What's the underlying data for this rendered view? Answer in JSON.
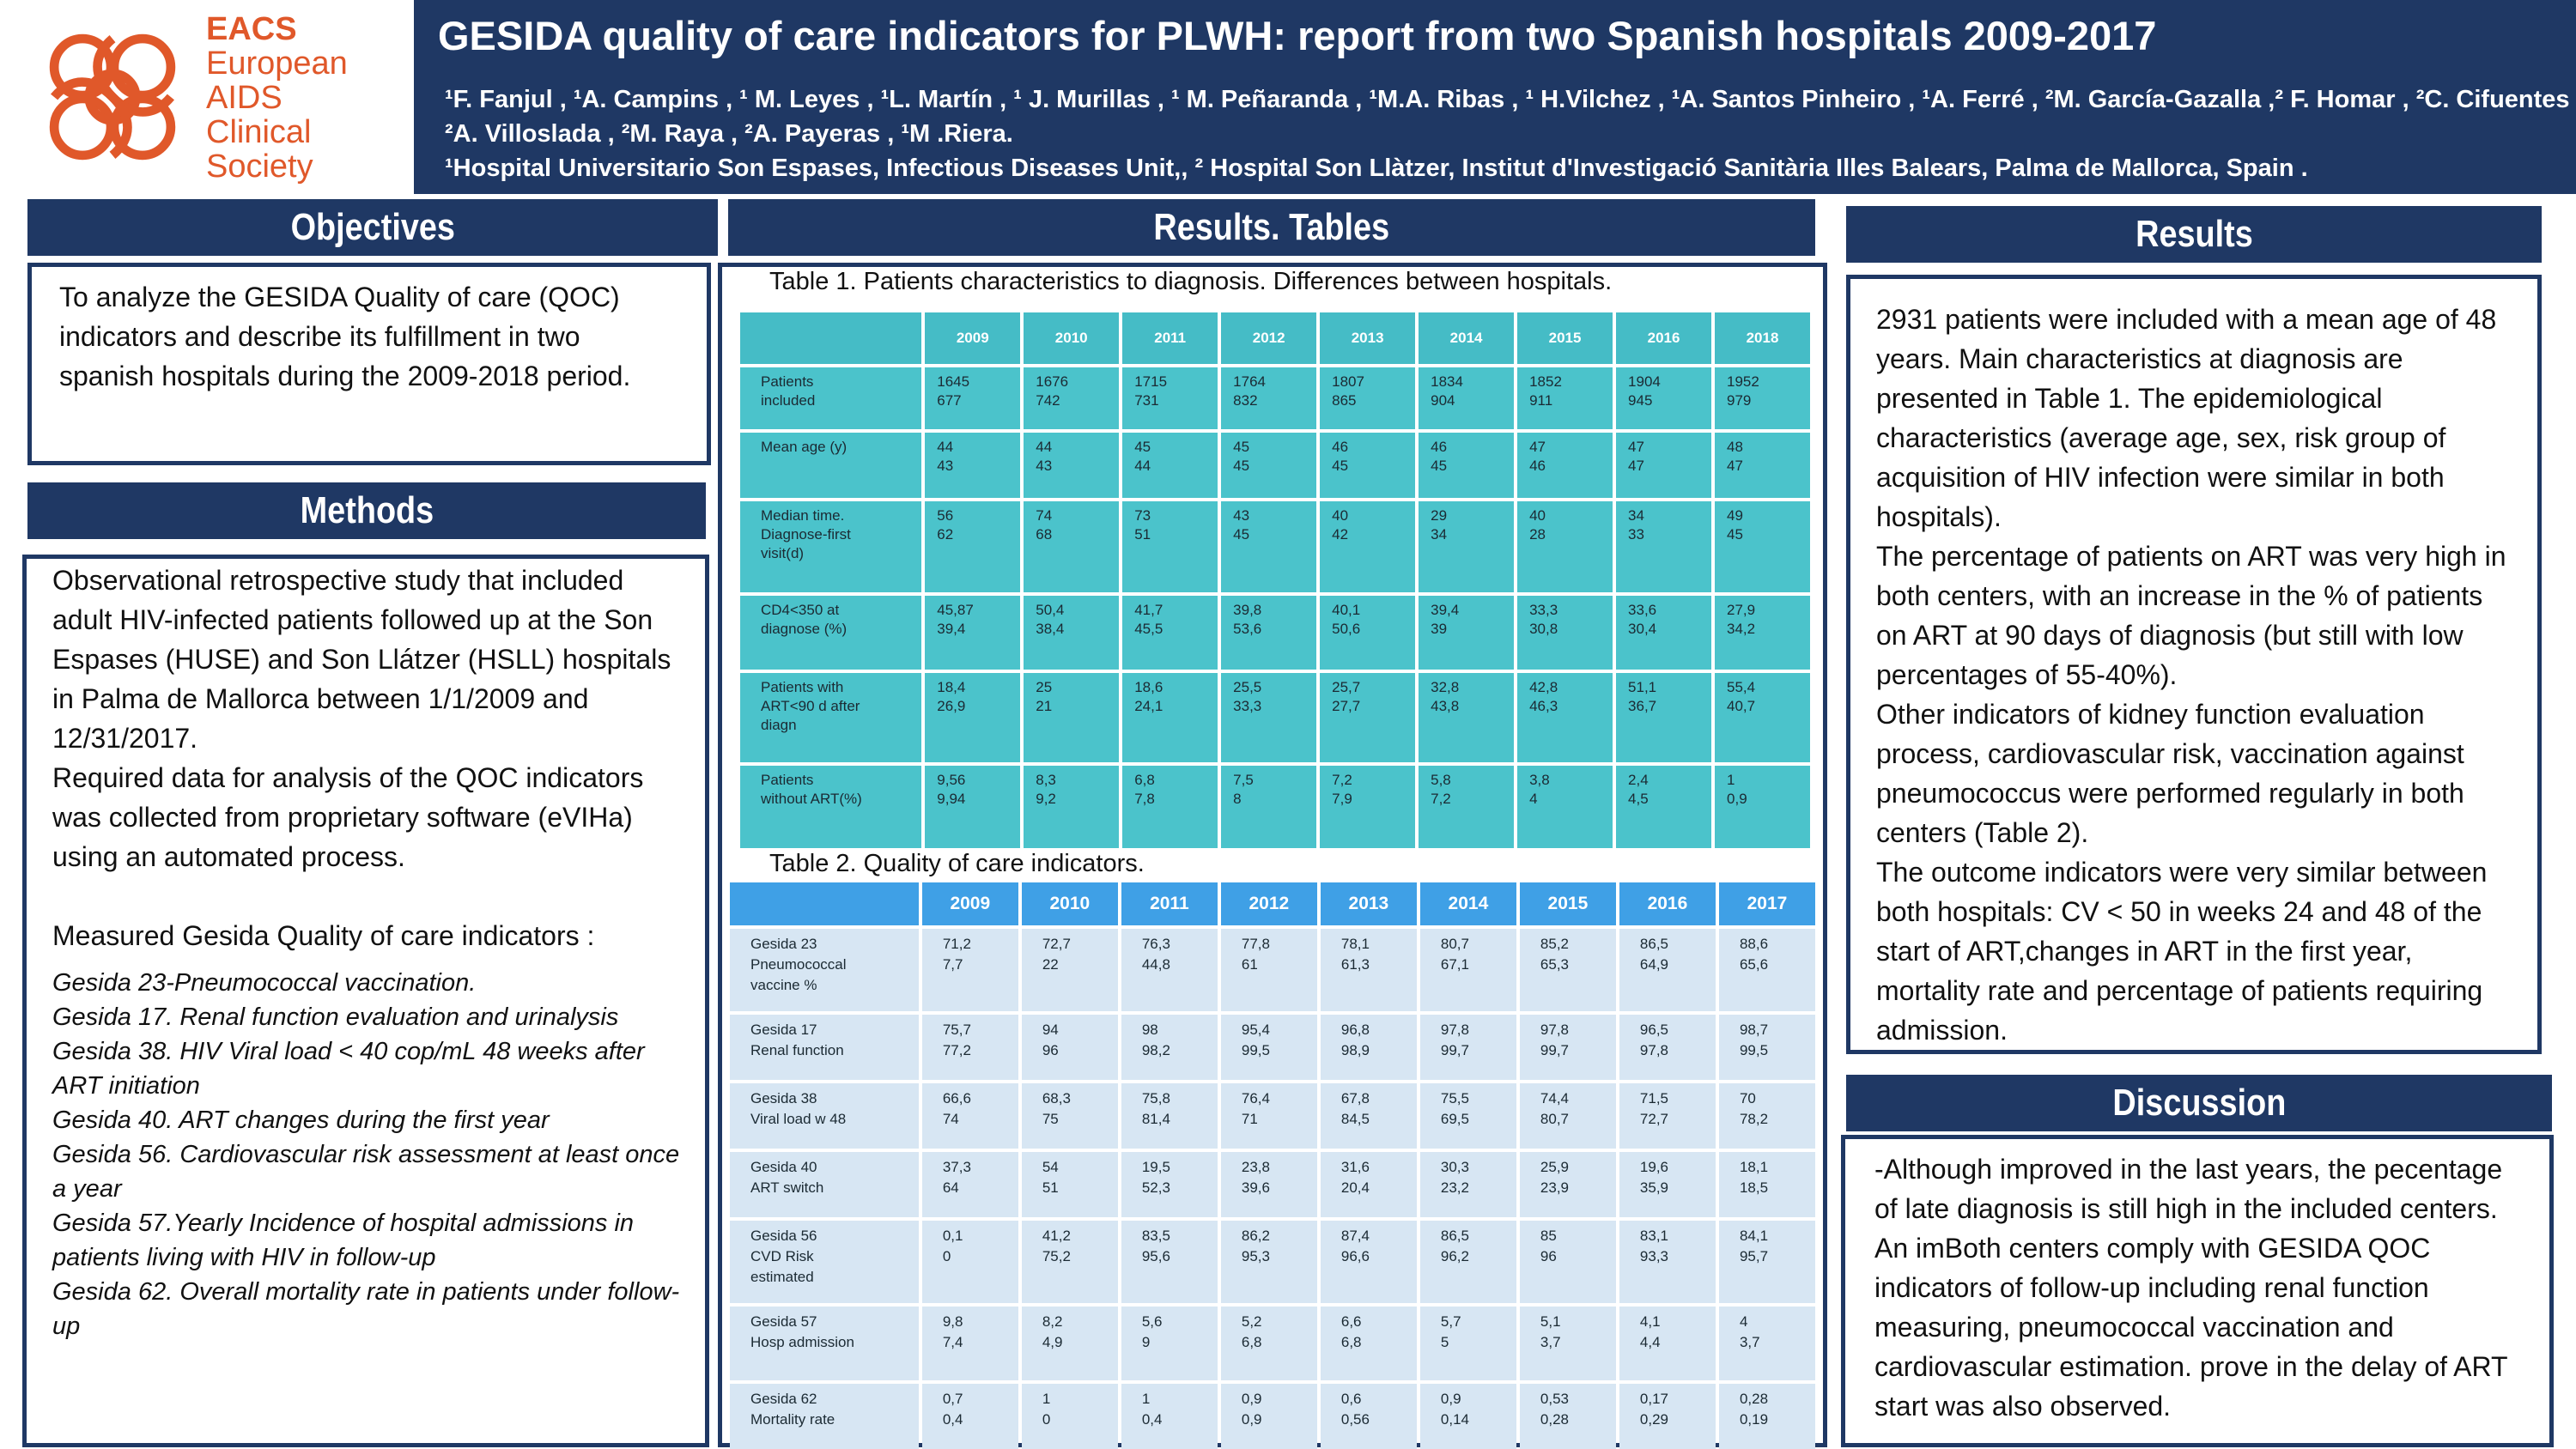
{
  "header": {
    "logo": {
      "name": "eacs-knot-logo",
      "lines": [
        "EACS",
        "European",
        "AIDS",
        "Clinical",
        "Society"
      ],
      "color": "#e0582a"
    },
    "title": "GESIDA quality of care indicators for PLWH: report from two Spanish hospitals 2009-2017",
    "authors_line1": "¹F. Fanjul , ¹A. Campins , ¹ M. Leyes , ¹L. Martín , ¹ J. Murillas , ¹ M. Peñaranda , ¹M.A. Ribas , ¹ H.Vilchez , ¹A. Santos Pinheiro , ¹A. Ferré , ²M. García-Gazalla ,² F. Homar , ²C. Cifuentes ,",
    "authors_line2": "²A. Villoslada , ²M. Raya , ²A. Payeras , ¹M .Riera.",
    "affiliations": "¹Hospital Universitario Son Espases, Infectious Diseases Unit,, ² Hospital Son Llàtzer, Institut d'Investigació Sanitària Illes Balears, Palma de Mallorca, Spain ."
  },
  "objectives": {
    "heading": "Objectives",
    "text": "To analyze the GESIDA Quality of care (QOC) indicators and describe its fulfillment in two spanish hospitals during the 2009-2018 period."
  },
  "methods": {
    "heading": "Methods",
    "paragraphs": [
      "Observational retrospective study that included adult HIV-infected patients followed up at the Son Espases (HUSE) and Son Llátzer (HSLL) hospitals in Palma de Mallorca between 1/1/2009 and 12/31/2017.",
      "Required data for analysis of the QOC indicators was collected from proprietary software (eVIHa) using an automated process.",
      "Measured Gesida Quality of care indicators :"
    ],
    "indicators": [
      "Gesida 23-Pneumococcal vaccination.",
      "Gesida 17. Renal function evaluation and urinalysis",
      "Gesida 38. HIV  Viral load < 40 cop/mL 48 weeks after ART  initiation",
      "Gesida 40. ART changes during the first year",
      "Gesida 56. Cardiovascular risk assessment at least once a year",
      "Gesida 57.Yearly  Incidence of hospital admissions in patients living with HIV in follow-up",
      "Gesida 62. Overall mortality rate in patients under follow-up"
    ]
  },
  "results_tables": {
    "heading": "Results. Tables",
    "table1": {
      "caption": "Table 1. Patients characteristics to diagnosis. Differences between hospitals.",
      "years": [
        "2009",
        "2010",
        "2011",
        "2012",
        "2013",
        "2014",
        "2015",
        "2016",
        "2018"
      ],
      "rows": [
        {
          "label": [
            "Patients",
            "included"
          ],
          "values": [
            [
              "1645",
              "677"
            ],
            [
              "1676",
              "742"
            ],
            [
              "1715",
              "731"
            ],
            [
              "1764",
              "832"
            ],
            [
              "1807",
              "865"
            ],
            [
              "1834",
              "904"
            ],
            [
              "1852",
              "911"
            ],
            [
              "1904",
              "945"
            ],
            [
              "1952",
              "979"
            ]
          ]
        },
        {
          "label": [
            "Mean age (y)"
          ],
          "values": [
            [
              "44",
              "43"
            ],
            [
              "44",
              "43"
            ],
            [
              "45",
              "44"
            ],
            [
              "45",
              "45"
            ],
            [
              "46",
              "45"
            ],
            [
              "46",
              "45"
            ],
            [
              "47",
              "46"
            ],
            [
              "47",
              "47"
            ],
            [
              "48",
              "47"
            ]
          ]
        },
        {
          "label": [
            "Median time.",
            "Diagnose-first",
            "visit(d)"
          ],
          "values": [
            [
              "56",
              "62"
            ],
            [
              "74",
              "68"
            ],
            [
              "73",
              "51"
            ],
            [
              "43",
              "45"
            ],
            [
              "40",
              "42"
            ],
            [
              "29",
              "34"
            ],
            [
              "40",
              "28"
            ],
            [
              "34",
              "33"
            ],
            [
              "49",
              "45"
            ]
          ]
        },
        {
          "label": [
            "CD4<350 at",
            "diagnose (%)"
          ],
          "values": [
            [
              "45,87",
              "39,4"
            ],
            [
              "50,4",
              "38,4"
            ],
            [
              "41,7",
              "45,5"
            ],
            [
              "39,8",
              "53,6"
            ],
            [
              "40,1",
              "50,6"
            ],
            [
              "39,4",
              "39"
            ],
            [
              "33,3",
              "30,8"
            ],
            [
              "33,6",
              "30,4"
            ],
            [
              "27,9",
              "34,2"
            ]
          ]
        },
        {
          "label": [
            "Patients with",
            "ART<90 d after",
            "diagn"
          ],
          "values": [
            [
              "18,4",
              "26,9"
            ],
            [
              "25",
              "21"
            ],
            [
              "18,6",
              "24,1"
            ],
            [
              "25,5",
              "33,3"
            ],
            [
              "25,7",
              "27,7"
            ],
            [
              "32,8",
              "43,8"
            ],
            [
              "42,8",
              "46,3"
            ],
            [
              "51,1",
              "36,7"
            ],
            [
              "55,4",
              "40,7"
            ]
          ]
        },
        {
          "label": [
            "Patients",
            "without ART(%)"
          ],
          "values": [
            [
              "9,56",
              "9,94"
            ],
            [
              "8,3",
              "9,2"
            ],
            [
              "6,8",
              "7,8"
            ],
            [
              "7,5",
              "8"
            ],
            [
              "7,2",
              "7,9"
            ],
            [
              "5,8",
              "7,2"
            ],
            [
              "3,8",
              "4"
            ],
            [
              "2,4",
              "4,5"
            ],
            [
              "1",
              "0,9"
            ]
          ]
        }
      ]
    },
    "table2": {
      "caption": "Table 2. Quality of care indicators.",
      "years": [
        "2009",
        "2010",
        "2011",
        "2012",
        "2013",
        "2014",
        "2015",
        "2016",
        "2017"
      ],
      "rows": [
        {
          "label": [
            "Gesida 23",
            "Pneumococcal",
            "vaccine %"
          ],
          "values": [
            [
              "71,2",
              "7,7"
            ],
            [
              "72,7",
              "22"
            ],
            [
              "76,3",
              "44,8"
            ],
            [
              "77,8",
              "61"
            ],
            [
              "78,1",
              "61,3"
            ],
            [
              "80,7",
              "67,1"
            ],
            [
              "85,2",
              "65,3"
            ],
            [
              "86,5",
              "64,9"
            ],
            [
              "88,6",
              "65,6"
            ]
          ]
        },
        {
          "label": [
            "Gesida 17",
            "Renal function"
          ],
          "values": [
            [
              "75,7",
              "77,2"
            ],
            [
              "94",
              "96"
            ],
            [
              "98",
              "98,2"
            ],
            [
              "95,4",
              "99,5"
            ],
            [
              "96,8",
              "98,9"
            ],
            [
              "97,8",
              "99,7"
            ],
            [
              "97,8",
              "99,7"
            ],
            [
              "96,5",
              "97,8"
            ],
            [
              "98,7",
              "99,5"
            ]
          ]
        },
        {
          "label": [
            "Gesida 38",
            "Viral load w 48"
          ],
          "values": [
            [
              "66,6",
              "74"
            ],
            [
              "68,3",
              "75"
            ],
            [
              "75,8",
              "81,4"
            ],
            [
              "76,4",
              "71"
            ],
            [
              "67,8",
              "84,5"
            ],
            [
              "75,5",
              "69,5"
            ],
            [
              "74,4",
              "80,7"
            ],
            [
              "71,5",
              "72,7"
            ],
            [
              "70",
              "78,2"
            ]
          ]
        },
        {
          "label": [
            "Gesida 40",
            "ART switch"
          ],
          "values": [
            [
              "37,3",
              "64"
            ],
            [
              "54",
              "51"
            ],
            [
              "19,5",
              "52,3"
            ],
            [
              "23,8",
              "39,6"
            ],
            [
              "31,6",
              "20,4"
            ],
            [
              "30,3",
              "23,2"
            ],
            [
              "25,9",
              "23,9"
            ],
            [
              "19,6",
              "35,9"
            ],
            [
              "18,1",
              "18,5"
            ]
          ]
        },
        {
          "label": [
            "Gesida 56",
            "CVD Risk",
            "estimated"
          ],
          "values": [
            [
              "0,1",
              "0"
            ],
            [
              "41,2",
              "75,2"
            ],
            [
              "83,5",
              "95,6"
            ],
            [
              "86,2",
              "95,3"
            ],
            [
              "87,4",
              "96,6"
            ],
            [
              "86,5",
              "96,2"
            ],
            [
              "85",
              "96"
            ],
            [
              "83,1",
              "93,3"
            ],
            [
              "84,1",
              "95,7"
            ]
          ]
        },
        {
          "label": [
            "Gesida 57",
            "Hosp admission"
          ],
          "values": [
            [
              "9,8",
              "7,4"
            ],
            [
              "8,2",
              "4,9"
            ],
            [
              "5,6",
              "9"
            ],
            [
              "5,2",
              "6,8"
            ],
            [
              "6,6",
              "6,8"
            ],
            [
              "5,7",
              "5"
            ],
            [
              "5,1",
              "3,7"
            ],
            [
              "4,1",
              "4,4"
            ],
            [
              "4",
              "3,7"
            ]
          ]
        },
        {
          "label": [
            "Gesida 62",
            "Mortality rate"
          ],
          "values": [
            [
              "0,7",
              "0,4"
            ],
            [
              "1",
              "0"
            ],
            [
              "1",
              "0,4"
            ],
            [
              "0,9",
              "0,9"
            ],
            [
              "0,6",
              "0,56"
            ],
            [
              "0,9",
              "0,14"
            ],
            [
              "0,53",
              "0,28"
            ],
            [
              "0,17",
              "0,29"
            ],
            [
              "0,28",
              "0,19"
            ]
          ]
        }
      ]
    }
  },
  "results": {
    "heading": "Results",
    "paragraphs": [
      "2931 patients were included with a mean age of 48 years. Main characteristics at diagnosis are presented in Table 1. The epidemiological characteristics (average age, sex, risk group of acquisition of HIV infection were similar in both hospitals).",
      "The percentage of patients on ART was very high in both centers, with an increase in the % of patients on ART at 90 days of diagnosis (but still with low percentages of 55-40%).",
      "Other indicators of kidney function evaluation process, cardiovascular risk, vaccination against pneumococcus were performed regularly in both centers (Table 2).",
      "The outcome indicators were very similar between both hospitals: CV < 50 in weeks 24 and 48 of the start of ART,changes in ART in the first year, mortality rate and percentage of patients requiring admission."
    ]
  },
  "discussion": {
    "heading": "Discussion",
    "text": "-Although improved in the last years, the pecentage of late diagnosis is still high in the included centers. An imBoth centers comply with GESIDA QOC indicators of follow-up including renal function measuring, pneumococcal vaccination and cardiovascular estimation. prove in the delay of ART start was also observed."
  },
  "colors": {
    "navy": "#1f3864",
    "teal": "#4bc3cb",
    "table2_header": "#3fa0e6",
    "table2_cell": "#d7e6f3",
    "logo_orange": "#e0582a"
  }
}
